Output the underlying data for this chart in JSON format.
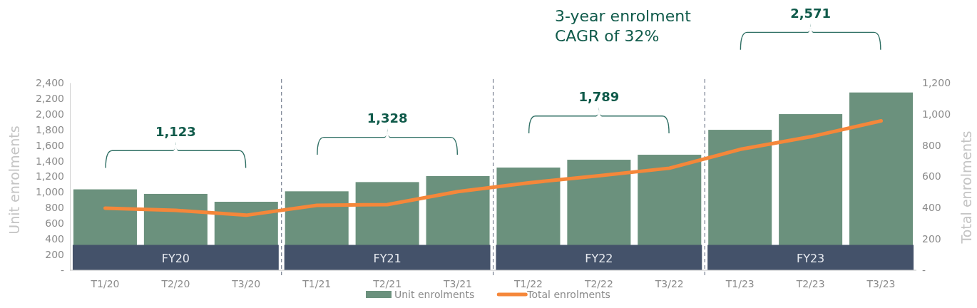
{
  "chart_data": {
    "type": "bar",
    "categories": [
      "T1/20",
      "T2/20",
      "T3/20",
      "T1/21",
      "T2/21",
      "T3/21",
      "T1/22",
      "T2/22",
      "T3/22",
      "T1/23",
      "T2/23",
      "T3/23"
    ],
    "series": [
      {
        "name": "Unit enrolments",
        "color": "#6b917d",
        "values": [
          1035,
          977,
          876,
          1010,
          1128,
          1205,
          1314,
          1414,
          1478,
          1797,
          1998,
          2275
        ]
      },
      {
        "name": "Total enrolments",
        "type": "line",
        "axis": "y2",
        "color": "#f5873a",
        "values": [
          397,
          383,
          352,
          415,
          420,
          503,
          559,
          605,
          653,
          773,
          854,
          956
        ]
      }
    ],
    "ylabel": "Unit enrolments",
    "y2label": "Total enrolments",
    "ylim": [
      0,
      2400
    ],
    "yticks": [
      {
        "value": 0,
        "label": "-"
      },
      200,
      400,
      600,
      800,
      {
        "value": 1000,
        "label": "1,000"
      },
      {
        "value": 1200,
        "label": "1,200"
      },
      {
        "value": 1400,
        "label": "1,400"
      },
      {
        "value": 1600,
        "label": "1,600"
      },
      {
        "value": 1800,
        "label": "1,800"
      },
      {
        "value": 2000,
        "label": "2,000"
      },
      {
        "value": 2200,
        "label": "2,200"
      },
      {
        "value": 2400,
        "label": "2,400"
      }
    ],
    "y2lim": [
      0,
      1200
    ],
    "y2ticks": [
      {
        "value": 0,
        "label": "-"
      },
      200,
      400,
      600,
      800,
      {
        "value": 1000,
        "label": "1,000"
      },
      {
        "value": 1200,
        "label": "1,200"
      }
    ],
    "annotations": [
      "3-year enrolment CAGR of 32%",
      "1,123",
      "1,328",
      "1,789",
      "2,571",
      "FY20",
      "FY21",
      "FY22",
      "FY23"
    ],
    "legend": "bottom",
    "grid": false,
    "marker": "none",
    "line_style": "solid"
  }
}
